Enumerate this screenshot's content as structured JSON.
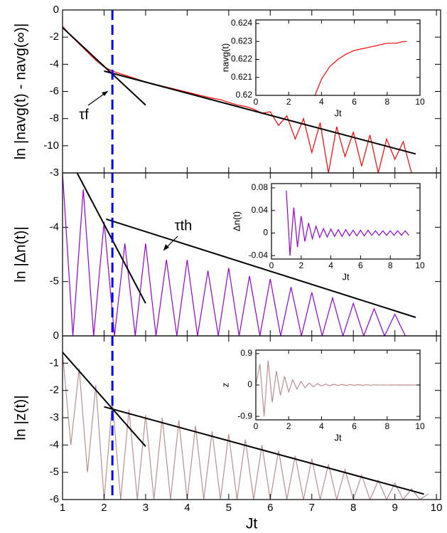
{
  "chart_data": [
    {
      "type": "line",
      "ylabel": "ln |navg(t) - navg(∞)|",
      "xlim": [
        1,
        10.1
      ],
      "ylim": [
        -12,
        0
      ],
      "xticks": [
        1,
        2,
        3,
        4,
        5,
        6,
        7,
        8,
        9,
        10
      ],
      "yticks": [
        0,
        -2,
        -4,
        -6,
        -8,
        -10
      ],
      "xtick_labels": false,
      "marker_x": 2.2,
      "marker_color": "#0000ff",
      "series": [
        {
          "color": "#ff0000",
          "x": [
            1,
            1.2,
            1.4,
            1.6,
            1.8,
            2,
            2.2,
            2.4,
            2.6,
            2.8,
            3,
            3.2,
            3.4,
            3.6,
            3.8,
            4,
            4.2,
            4.4,
            4.6,
            4.8,
            5,
            5.2,
            5.4,
            5.6,
            5.8,
            6,
            6.2,
            6.4,
            6.6,
            6.8,
            7,
            7.2,
            7.4,
            7.6,
            7.8,
            8,
            8.2,
            8.4,
            8.6,
            8.8,
            9,
            9.2,
            9.4
          ],
          "values": [
            -1.2,
            -1.9,
            -2.5,
            -3.1,
            -3.7,
            -4.2,
            -4.5,
            -4.7,
            -4.9,
            -5.1,
            -5.3,
            -5.45,
            -5.6,
            -5.75,
            -5.9,
            -6.05,
            -6.2,
            -6.35,
            -6.5,
            -6.6,
            -6.8,
            -7.0,
            -7.1,
            -7.3,
            -7.6,
            -7.5,
            -8.5,
            -7.8,
            -9.5,
            -8.0,
            -10.5,
            -8.3,
            -12,
            -8.6,
            -10.8,
            -9.0,
            -11.5,
            -9.2,
            -12,
            -9.5,
            -11,
            -9.7,
            -12
          ]
        },
        {
          "color": "#000000",
          "x": [
            1,
            3
          ],
          "values": [
            -1.3,
            -7
          ]
        },
        {
          "color": "#000000",
          "x": [
            2,
            9.5
          ],
          "values": [
            -4.5,
            -10.6
          ]
        }
      ]
    },
    {
      "type": "line",
      "ylabel": "ln |Δn(t)|",
      "xlim": [
        1,
        10.1
      ],
      "ylim": [
        -6,
        -3
      ],
      "xticks": [
        1,
        2,
        3,
        4,
        5,
        6,
        7,
        8,
        9,
        10
      ],
      "yticks": [
        -3,
        -4,
        -5
      ],
      "xtick_labels": false,
      "marker_x": 2.2,
      "marker_color": "#0000ff",
      "series": [
        {
          "color": "#9400d3",
          "x": [
            1,
            1.25,
            1.5,
            1.75,
            2,
            2.25,
            2.5,
            2.75,
            3,
            3.25,
            3.5,
            3.75,
            4,
            4.25,
            4.5,
            4.75,
            5,
            5.25,
            5.5,
            5.75,
            6,
            6.25,
            6.5,
            6.75,
            7,
            7.25,
            7.5,
            7.75,
            8,
            8.25,
            8.5,
            8.75,
            9,
            9.25
          ],
          "values": [
            -3.0,
            -6,
            -3.3,
            -6,
            -3.9,
            -6,
            -4.3,
            -6,
            -4.3,
            -6,
            -4.6,
            -6,
            -4.6,
            -6,
            -4.8,
            -6,
            -4.75,
            -6,
            -4.9,
            -6,
            -4.95,
            -6,
            -5.1,
            -6,
            -5.2,
            -6,
            -5.3,
            -6,
            -5.4,
            -6,
            -5.5,
            -6,
            -5.6,
            -6
          ]
        },
        {
          "color": "#000000",
          "x": [
            1.35,
            3
          ],
          "values": [
            -3,
            -5.4
          ]
        },
        {
          "color": "#000000",
          "x": [
            2.05,
            9.5
          ],
          "values": [
            -3.85,
            -5.66
          ]
        }
      ]
    },
    {
      "type": "line",
      "ylabel": "ln |z(t)|",
      "xlabel": "Jt",
      "xlim": [
        1,
        10.1
      ],
      "ylim": [
        -6,
        0
      ],
      "xticks": [
        1,
        2,
        3,
        4,
        5,
        6,
        7,
        8,
        9,
        10
      ],
      "yticks": [
        0,
        -1,
        -2,
        -3,
        -4,
        -5,
        -6
      ],
      "marker_x": 2.2,
      "marker_color": "#0000ff",
      "series": [
        {
          "color": "#bc8f8f",
          "x": [
            1,
            1.2,
            1.4,
            1.6,
            1.8,
            2,
            2.2,
            2.4,
            2.6,
            2.8,
            3,
            3.2,
            3.4,
            3.6,
            3.8,
            4,
            4.2,
            4.4,
            4.6,
            4.8,
            5,
            5.2,
            5.4,
            5.6,
            5.8,
            6,
            6.2,
            6.4,
            6.6,
            6.8,
            7,
            7.2,
            7.4,
            7.6,
            7.8,
            8,
            8.2,
            8.4,
            8.6,
            8.8,
            9,
            9.2,
            9.4,
            9.6,
            9.8
          ],
          "values": [
            -0.6,
            -4,
            -1.2,
            -5,
            -1.8,
            -6,
            -2.4,
            -6,
            -2.7,
            -6,
            -2.9,
            -6,
            -3.0,
            -6,
            -3.1,
            -6,
            -3.3,
            -6,
            -3.5,
            -6,
            -3.6,
            -6,
            -3.8,
            -6,
            -4.0,
            -6,
            -4.2,
            -6,
            -4.4,
            -6,
            -4.5,
            -6,
            -4.7,
            -6,
            -4.9,
            -6,
            -5.1,
            -6,
            -5.3,
            -6,
            -5.4,
            -6,
            -5.6,
            -6,
            -5.8
          ]
        },
        {
          "color": "#000000",
          "x": [
            1,
            3
          ],
          "values": [
            -0.6,
            -4.05
          ]
        },
        {
          "color": "#000000",
          "x": [
            2,
            9.7
          ],
          "values": [
            -2.6,
            -5.8
          ]
        }
      ]
    },
    {
      "type": "line",
      "ylabel": "navg(t)",
      "xlabel": "Jt",
      "xlim": [
        0,
        10
      ],
      "ylim": [
        0.62,
        0.6242
      ],
      "xticks": [
        0,
        2,
        4,
        6,
        8,
        10
      ],
      "yticks": [
        0.62,
        0.621,
        0.622,
        0.623,
        0.624
      ],
      "series": [
        {
          "color": "#ff0000",
          "x": [
            3.6,
            4,
            4.5,
            5,
            5.5,
            6,
            6.5,
            7,
            7.5,
            8,
            8.5,
            9,
            9.2
          ],
          "values": [
            0.62,
            0.6209,
            0.6216,
            0.622,
            0.6223,
            0.6225,
            0.6226,
            0.6227,
            0.6228,
            0.6229,
            0.6229,
            0.623,
            0.623
          ]
        }
      ]
    },
    {
      "type": "line",
      "ylabel": "Δn(t)",
      "xlabel": "Jt",
      "xlim": [
        0,
        10
      ],
      "ylim": [
        -0.046,
        0.0875
      ],
      "xticks": [
        0,
        2,
        4,
        6,
        8,
        10
      ],
      "yticks": [
        0.08,
        0.04,
        0,
        -0.04
      ],
      "series": [
        {
          "color": "#9400d3",
          "x": [
            1,
            1.25,
            1.5,
            1.75,
            2,
            2.25,
            2.5,
            2.75,
            3,
            3.25,
            3.5,
            3.75,
            4,
            4.25,
            4.5,
            4.75,
            5,
            5.25,
            5.5,
            5.75,
            6,
            6.25,
            6.5,
            6.75,
            7,
            7.25,
            7.5,
            7.75,
            8,
            8.25,
            8.5,
            8.75,
            9,
            9.25
          ],
          "values": [
            0.075,
            -0.04,
            0.045,
            -0.025,
            0.03,
            -0.015,
            0.018,
            -0.01,
            0.012,
            -0.008,
            0.008,
            -0.007,
            0.007,
            -0.006,
            0.006,
            -0.006,
            0.006,
            -0.005,
            0.005,
            -0.005,
            0.005,
            -0.005,
            0.005,
            -0.004,
            0.004,
            -0.004,
            0.004,
            -0.004,
            0.004,
            -0.004,
            0.004,
            -0.004,
            0.004,
            -0.004
          ]
        }
      ]
    },
    {
      "type": "line",
      "ylabel": "z",
      "xlabel": "Jt",
      "xlim": [
        0,
        10
      ],
      "ylim": [
        -1,
        1
      ],
      "xticks": [
        0,
        2,
        4,
        6,
        8,
        10
      ],
      "yticks": [
        0.9,
        0,
        -0.9
      ],
      "series": [
        {
          "color": "#bc8f8f",
          "x": [
            0,
            0.25,
            0.5,
            0.75,
            1,
            1.25,
            1.5,
            1.75,
            2,
            2.25,
            2.5,
            2.75,
            3,
            3.25,
            3.5,
            3.75,
            4,
            4.25,
            4.5,
            4.75,
            5,
            5.25,
            5.5,
            5.75,
            6,
            6.25,
            6.5,
            6.75,
            7,
            7.25,
            7.5,
            7.75,
            8,
            8.25,
            8.5,
            8.75,
            9,
            9.25,
            9.5,
            9.75,
            10
          ],
          "values": [
            0,
            0.6,
            -0.9,
            0.7,
            -0.5,
            0.4,
            -0.3,
            0.25,
            -0.2,
            0.15,
            -0.12,
            0.1,
            -0.08,
            0.06,
            -0.05,
            0.04,
            -0.03,
            0.025,
            -0.02,
            0.02,
            -0.015,
            0.015,
            -0.012,
            0.01,
            -0.01,
            0.008,
            -0.008,
            0.006,
            -0.006,
            0.005,
            -0.005,
            0.004,
            -0.004,
            0.003,
            -0.003,
            0.003,
            -0.002,
            0.002,
            -0.002,
            0.001,
            0
          ]
        }
      ]
    }
  ],
  "annotations": [
    "τf",
    "τth"
  ]
}
